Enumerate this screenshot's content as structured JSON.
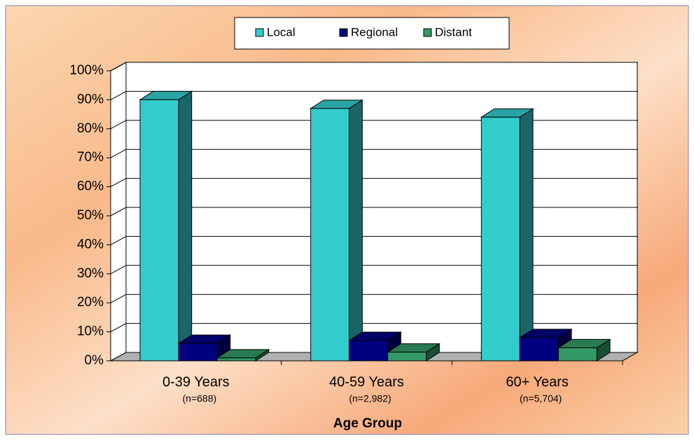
{
  "chart_data": {
    "type": "bar3d",
    "categories": [
      "0-39 Years",
      "40-59 Years",
      "60+ Years"
    ],
    "category_notes": [
      "(n=688)",
      "(n=2,982)",
      "(n=5,704)"
    ],
    "x_label": "Age Group",
    "series": [
      {
        "name": "Local",
        "color": "#33cccc",
        "values": [
          90,
          87,
          84
        ]
      },
      {
        "name": "Regional",
        "color": "#000080",
        "values": [
          6,
          7,
          8
        ]
      },
      {
        "name": "Distant",
        "color": "#339966",
        "values": [
          1,
          3,
          4.5
        ]
      }
    ],
    "ylim": [
      0,
      100
    ],
    "yticks": [
      {
        "value": 0,
        "label": "0%"
      },
      {
        "value": 10,
        "label": "10%"
      },
      {
        "value": 20,
        "label": "20%"
      },
      {
        "value": 30,
        "label": "30%"
      },
      {
        "value": 40,
        "label": "40%"
      },
      {
        "value": 50,
        "label": "50%"
      },
      {
        "value": 60,
        "label": "60%"
      },
      {
        "value": 70,
        "label": "70%"
      },
      {
        "value": 80,
        "label": "80%"
      },
      {
        "value": 90,
        "label": "90%"
      },
      {
        "value": 100,
        "label": "100%"
      }
    ],
    "grid": true
  }
}
